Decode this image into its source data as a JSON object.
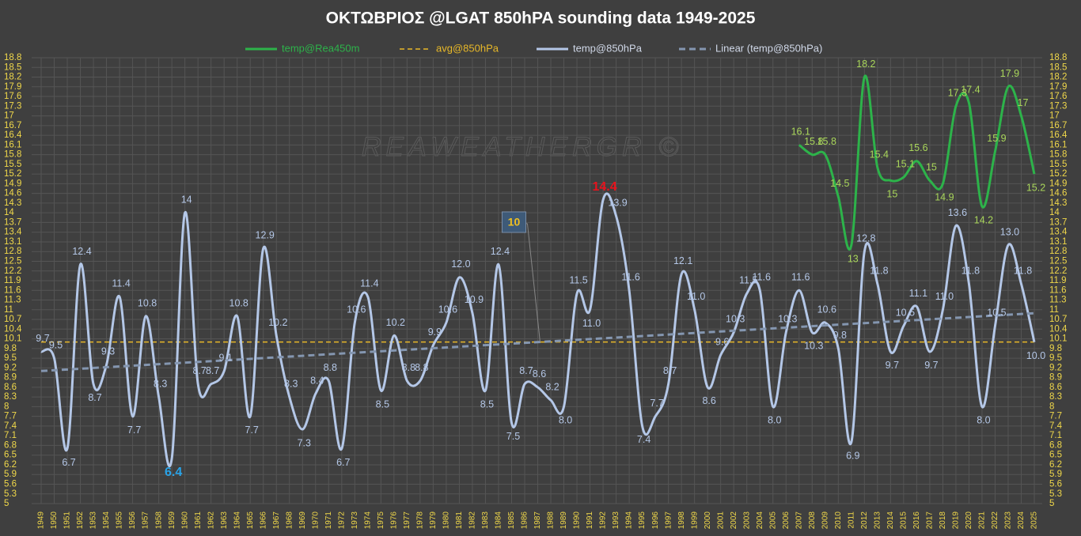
{
  "chart_data": {
    "type": "line",
    "title": "ΟΚΤΩΒΡΙΟΣ   @LGAT  850hPA  sounding data   1949-2025",
    "watermark": "REAWEATHERGR  ©",
    "annotation": {
      "text": "10",
      "x": "1985"
    },
    "categories": [
      "1949",
      "1950",
      "1951",
      "1952",
      "1953",
      "1954",
      "1955",
      "1956",
      "1957",
      "1958",
      "1959",
      "1960",
      "1961",
      "1962",
      "1963",
      "1964",
      "1965",
      "1966",
      "1967",
      "1968",
      "1969",
      "1970",
      "1971",
      "1972",
      "1973",
      "1974",
      "1975",
      "1976",
      "1977",
      "1978",
      "1979",
      "1980",
      "1981",
      "1982",
      "1983",
      "1984",
      "1985",
      "1986",
      "1987",
      "1988",
      "1989",
      "1990",
      "1991",
      "1992",
      "1993",
      "1994",
      "1995",
      "1996",
      "1997",
      "1998",
      "1999",
      "2000",
      "2001",
      "2002",
      "2003",
      "2004",
      "2005",
      "2006",
      "2007",
      "2008",
      "2009",
      "2010",
      "2011",
      "2012",
      "2013",
      "2014",
      "2015",
      "2016",
      "2017",
      "2018",
      "2019",
      "2020",
      "2021",
      "2022",
      "2023",
      "2024",
      "2025"
    ],
    "series": [
      {
        "name": "temp@Rea450m",
        "color": "#2db34a",
        "label_color": "#a9d65a",
        "values": [
          null,
          null,
          null,
          null,
          null,
          null,
          null,
          null,
          null,
          null,
          null,
          null,
          null,
          null,
          null,
          null,
          null,
          null,
          null,
          null,
          null,
          null,
          null,
          null,
          null,
          null,
          null,
          null,
          null,
          null,
          null,
          null,
          null,
          null,
          null,
          null,
          null,
          null,
          null,
          null,
          null,
          null,
          null,
          null,
          null,
          null,
          null,
          null,
          null,
          null,
          null,
          null,
          null,
          null,
          null,
          null,
          null,
          null,
          16.1,
          15.8,
          15.8,
          14.5,
          13,
          18.2,
          15.4,
          15,
          15.1,
          15.6,
          15,
          14.9,
          17.3,
          17.4,
          14.2,
          15.9,
          17.9,
          17,
          15.2
        ]
      },
      {
        "name": "avg@850hPa",
        "color": "#e8b828",
        "value": 10.0
      },
      {
        "name": "temp@850hPa",
        "color": "#b4c7e7",
        "label_color": "#b4c7e7",
        "values": [
          9.7,
          9.5,
          6.7,
          12.4,
          8.7,
          9.3,
          11.4,
          7.7,
          10.8,
          8.3,
          6.4,
          14,
          8.7,
          8.7,
          9.1,
          10.8,
          7.7,
          12.9,
          10.2,
          8.3,
          7.3,
          8.4,
          8.8,
          6.7,
          10.6,
          11.4,
          8.5,
          10.2,
          8.8,
          8.8,
          9.9,
          10.6,
          12.0,
          10.9,
          8.5,
          12.4,
          7.5,
          8.7,
          8.6,
          8.2,
          8.0,
          11.5,
          11.0,
          14.4,
          13.9,
          11.6,
          7.4,
          7.7,
          8.7,
          12.1,
          11.0,
          8.6,
          9.6,
          10.3,
          11.5,
          11.6,
          8.0,
          10.3,
          11.6,
          10.3,
          10.6,
          9.8,
          6.9,
          12.8,
          11.8,
          9.7,
          10.5,
          11.1,
          9.7,
          11.0,
          13.6,
          11.8,
          8.0,
          10.5,
          13.0,
          11.8,
          10.0
        ],
        "value_labels": [
          "9.7",
          "9.5",
          "6.7",
          "12.4",
          "8.7",
          "9.3",
          "11.4",
          "7.7",
          "10.8",
          "8.3",
          "6.4",
          "14",
          "8.7",
          "8.7",
          "9.1",
          "10.8",
          "7.7",
          "12.9",
          "10.2",
          "8.3",
          "7.3",
          "8.4",
          "8.8",
          "6.7",
          "10.6",
          "11.4",
          "8.5",
          "10.2",
          "8.8",
          "8.8",
          "9.9",
          "10.6",
          "12.0",
          "10.9",
          "8.5",
          "12.4",
          "7.5",
          "8.7",
          "8.6",
          "8.2",
          "8.0",
          "11.5",
          "11.0",
          "14.4",
          "13.9",
          "11.6",
          "7.4",
          "7.7",
          "8.7",
          "12.1",
          "11.0",
          "8.6",
          "9.6",
          "10.3",
          "11.5",
          "11.6",
          "8.0",
          "10.3",
          "11.6",
          "10.3",
          "10.6",
          "9.8",
          "6.9",
          "12.8",
          "11.8",
          "9.7",
          "10.5",
          "11.1",
          "9.7",
          "11.0",
          "13.6",
          "11.8",
          "8.0",
          "10.5",
          "13.0",
          "11.8",
          "10.0"
        ],
        "highlights": [
          {
            "year": "1959",
            "color": "#29a3e8"
          },
          {
            "year": "1992",
            "color": "#e8121c"
          }
        ]
      },
      {
        "name": "Linear (temp@850hPa)",
        "color": "#8496b0",
        "trend_of": "temp@850hPa"
      }
    ],
    "ylim": [
      5,
      18.8
    ],
    "yticks": [
      5,
      5.3,
      5.6,
      5.9,
      6.2,
      6.5,
      6.8,
      7.1,
      7.4,
      7.7,
      8,
      8.3,
      8.6,
      8.9,
      9.2,
      9.5,
      9.8,
      10.1,
      10.4,
      10.7,
      11,
      11.3,
      11.6,
      11.9,
      12.2,
      12.5,
      12.8,
      13.1,
      13.4,
      13.7,
      14,
      14.3,
      14.6,
      14.9,
      15.2,
      15.5,
      15.8,
      16.1,
      16.4,
      16.7,
      17,
      17.3,
      17.6,
      17.9,
      18.2,
      18.5,
      18.8
    ],
    "y2lim": [
      5,
      18.8
    ],
    "y2ticks": [
      5,
      5.3,
      5.6,
      5.9,
      6.2,
      6.5,
      6.8,
      7.1,
      7.4,
      7.7,
      8,
      8.3,
      8.6,
      8.9,
      9.2,
      9.5,
      9.8,
      10.1,
      10.4,
      10.7,
      11,
      11.3,
      11.6,
      11.9,
      12.2,
      12.5,
      12.8,
      13.1,
      13.4,
      13.7,
      14,
      14.3,
      14.6,
      14.9,
      15.2,
      15.5,
      15.8,
      16.1,
      16.4,
      16.7,
      17,
      17.3,
      17.6,
      17.9,
      18.2,
      18.5,
      18.8
    ],
    "grid": true,
    "legend": "top"
  }
}
